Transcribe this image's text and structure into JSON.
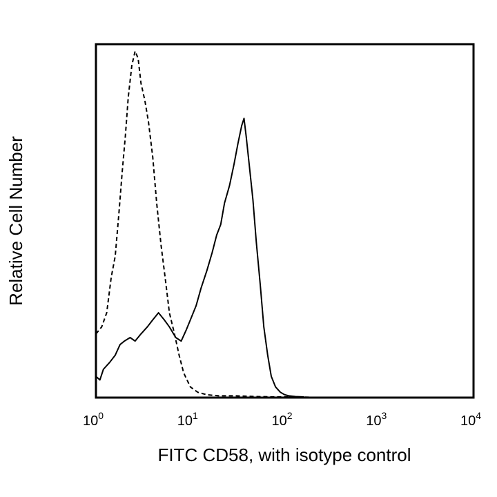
{
  "chart_data": {
    "type": "line",
    "title": "",
    "xlabel": "FITC CD58, with isotype control",
    "ylabel": "Relative Cell Number",
    "x_scale": "log",
    "xlim": [
      1,
      10000
    ],
    "ylim": [
      0,
      100
    ],
    "grid": false,
    "legend": "none",
    "x_ticks": [
      {
        "base": "10",
        "exp": "0"
      },
      {
        "base": "10",
        "exp": "1"
      },
      {
        "base": "10",
        "exp": "2"
      },
      {
        "base": "10",
        "exp": "3"
      },
      {
        "base": "10",
        "exp": "4"
      }
    ],
    "series": [
      {
        "style": "dashed",
        "color": "#000000",
        "x": [
          1.0,
          1.15,
          1.3,
          1.45,
          1.6,
          1.75,
          1.9,
          2.05,
          2.2,
          2.4,
          2.6,
          2.8,
          3.0,
          3.3,
          3.6,
          4.0,
          4.4,
          4.9,
          5.4,
          6.0,
          6.8,
          7.6,
          8.5,
          10.0,
          12.0,
          15.0,
          20.0,
          30.0,
          50.0,
          80.0,
          120.0,
          200.0
        ],
        "y": [
          18,
          20,
          24,
          34,
          40,
          52,
          64,
          74,
          85,
          94,
          98,
          96,
          89,
          84,
          78,
          68,
          55,
          43,
          34,
          24,
          18,
          12,
          7,
          3,
          1.5,
          0.8,
          0.5,
          0.5,
          0.3,
          0.2,
          0.2,
          0.1
        ]
      },
      {
        "style": "solid",
        "color": "#000000",
        "x": [
          1.0,
          1.1,
          1.2,
          1.4,
          1.6,
          1.8,
          2.0,
          2.3,
          2.6,
          3.0,
          3.5,
          4.0,
          4.6,
          5.3,
          6.0,
          7.0,
          8.0,
          9.0,
          10.0,
          11.5,
          13.0,
          15.0,
          17.0,
          19.0,
          21.0,
          23.0,
          26.0,
          29.0,
          32.0,
          35.0,
          37.0,
          39.0,
          42.0,
          46.0,
          50.0,
          55.0,
          60.0,
          66.0,
          72.0,
          80.0,
          90.0,
          100.0,
          110.0,
          130.0,
          160.0
        ],
        "y": [
          6,
          5,
          8,
          10,
          12,
          15,
          16,
          17,
          16,
          18,
          20,
          22,
          24,
          22,
          20,
          17,
          16,
          19,
          22,
          26,
          31,
          36,
          41,
          46,
          49,
          55,
          60,
          66,
          72,
          77,
          79,
          74,
          66,
          56,
          44,
          32,
          20,
          12,
          6,
          3,
          1.5,
          0.8,
          0.5,
          0.3,
          0.2
        ]
      }
    ]
  }
}
